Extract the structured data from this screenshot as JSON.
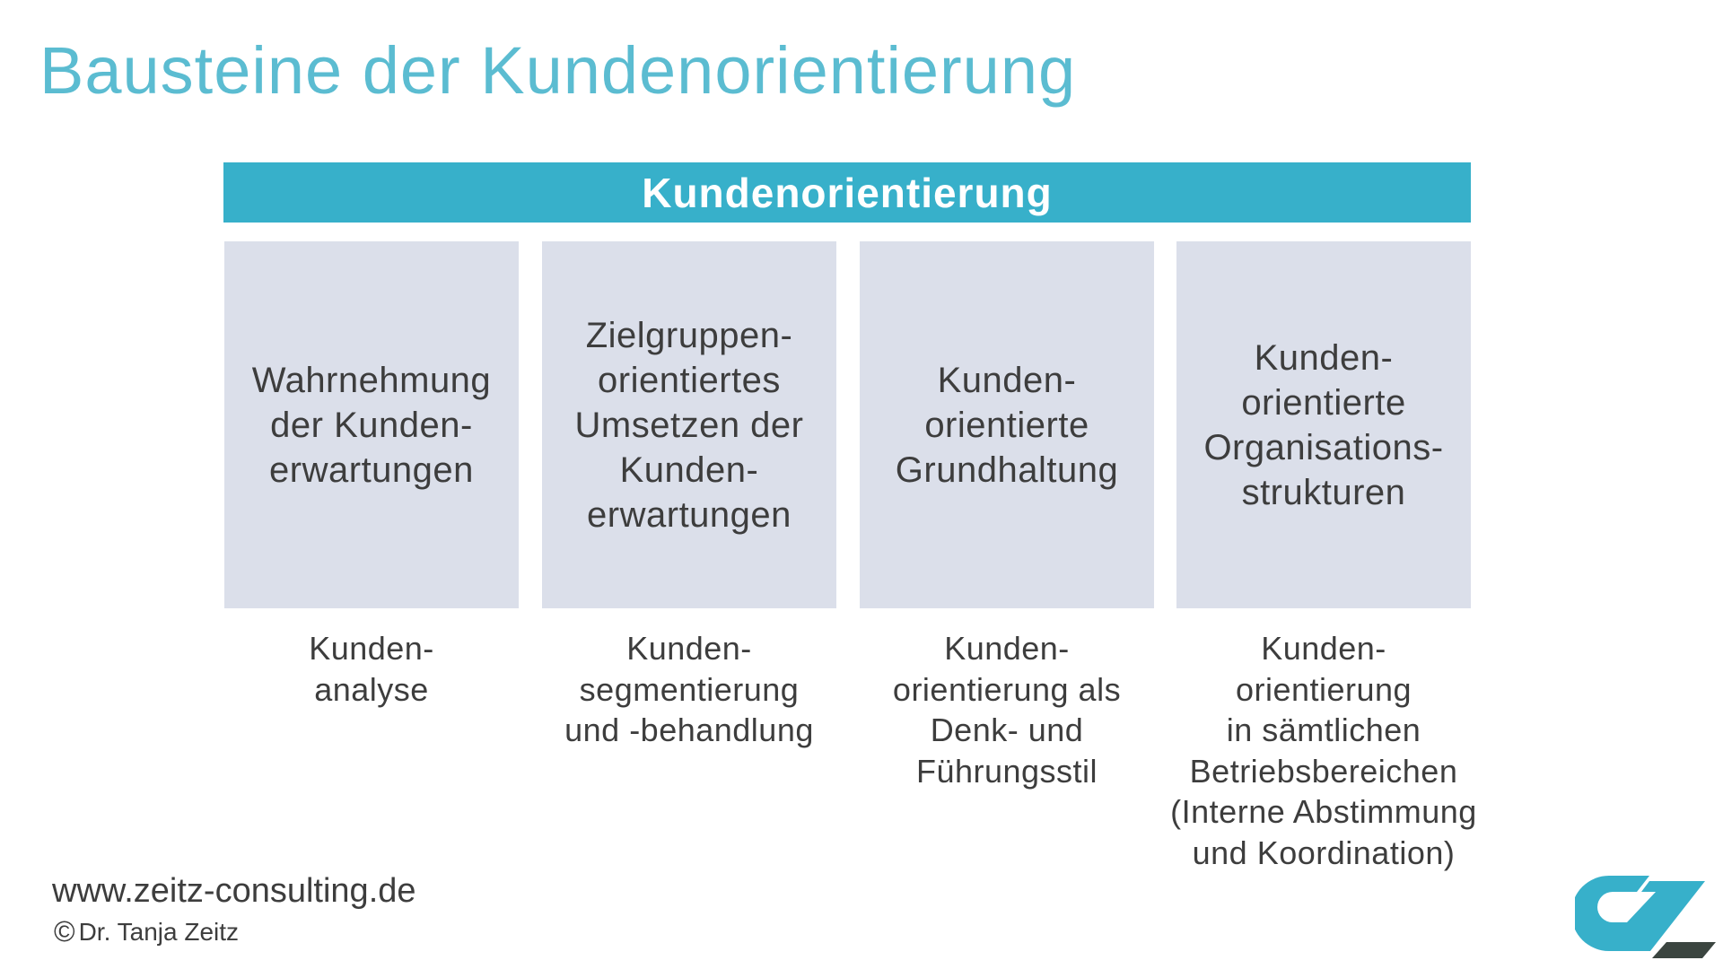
{
  "title": "Bausteine der Kundenorientierung",
  "banner": "Kundenorientierung",
  "columns": [
    {
      "box": "Wahrnehmung\nder Kunden-\nerwartungen",
      "below": "Kunden-\nanalyse"
    },
    {
      "box": "Zielgruppen-\norientiertes\nUmsetzen der\nKunden-\nerwartungen",
      "below": "Kunden-\nsegmentierung\nund -behandlung"
    },
    {
      "box": "Kunden-\norientierte\nGrundhaltung",
      "below": "Kunden-\norientierung als\nDenk- und\nFührungsstil"
    },
    {
      "box": "Kunden-\norientierte\nOrganisations-\nstrukturen",
      "below": "Kunden-\norientierung\nin sämtlichen\nBetriebsbereichen\n(Interne Abstimmung\nund Koordination)"
    }
  ],
  "footer": {
    "url": "www.zeitz-consulting.de",
    "copyright_symbol": "©",
    "author": "Dr. Tanja Zeitz"
  },
  "logo": {
    "text": "CZ",
    "colors": {
      "primary": "#37b0ca",
      "secondary": "#3b4540"
    }
  },
  "colors": {
    "accent": "#37b0ca",
    "title": "#5bbcd1",
    "box": "#dbdfea",
    "text": "#3d3d3d"
  }
}
